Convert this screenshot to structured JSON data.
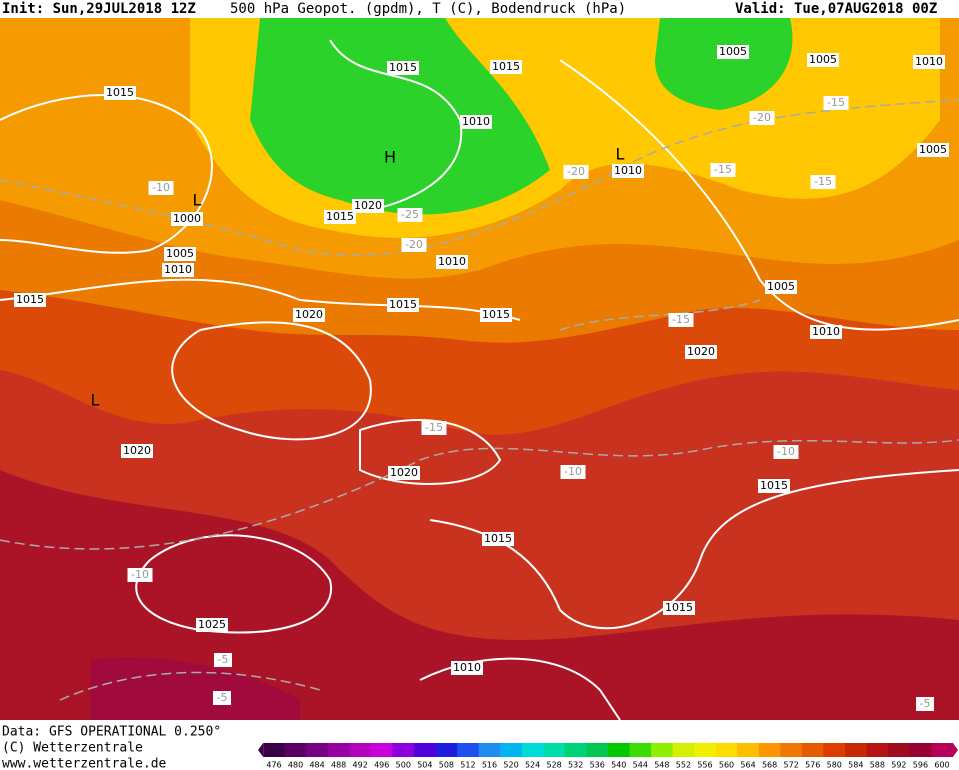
{
  "header": {
    "init": "Init: Sun,29JUL2018 12Z",
    "title": "500 hPa Geopot. (gpdm), T (C), Bodendruck (hPa)",
    "valid": "Valid: Tue,07AUG2018 00Z"
  },
  "map": {
    "contour_labels": [
      "1015",
      "1015",
      "1015",
      "1005",
      "1005",
      "1010",
      "1010",
      "-15",
      "-20",
      "1005",
      "-20",
      "1010",
      "-15",
      "-15",
      "-10",
      "1000",
      "1020",
      "-25",
      "1015",
      "-20",
      "1005",
      "1010",
      "1010",
      "1005",
      "1015",
      "1015",
      "1020",
      "1015",
      "-15",
      "1010",
      "1020",
      "-15",
      "1020",
      "-10",
      "-10",
      "1020",
      "1015",
      "1015",
      "-10",
      "1015",
      "1025",
      "-5",
      "1010",
      "-5",
      "-5"
    ],
    "pressure_centers": [
      "H",
      "L",
      "L",
      "L"
    ]
  },
  "footer": {
    "data": "Data: GFS OPERATIONAL 0.250°",
    "copyright": "(C) Wetterzentrale",
    "url": "www.wetterzentrale.de"
  },
  "color_scale": {
    "labels": [
      476,
      480,
      484,
      488,
      492,
      496,
      500,
      504,
      508,
      512,
      516,
      520,
      524,
      528,
      532,
      536,
      540,
      544,
      548,
      552,
      556,
      560,
      564,
      568,
      572,
      576,
      580,
      584,
      588,
      592,
      596,
      600
    ],
    "colors": [
      "#3c0046",
      "#5a0064",
      "#780082",
      "#9600a0",
      "#b400be",
      "#c800dc",
      "#8c00dc",
      "#5000dc",
      "#1e1edc",
      "#1e50f0",
      "#1e8cf0",
      "#00b4f0",
      "#00dcdc",
      "#00dcaa",
      "#00d278",
      "#00c850",
      "#00c800",
      "#3cdc00",
      "#8cf000",
      "#d2f000",
      "#f0f000",
      "#ffdc00",
      "#ffbe00",
      "#ff9600",
      "#f07800",
      "#e65a00",
      "#dc3c00",
      "#c82800",
      "#b41414",
      "#a00a1e",
      "#960032",
      "#b4005a"
    ]
  }
}
